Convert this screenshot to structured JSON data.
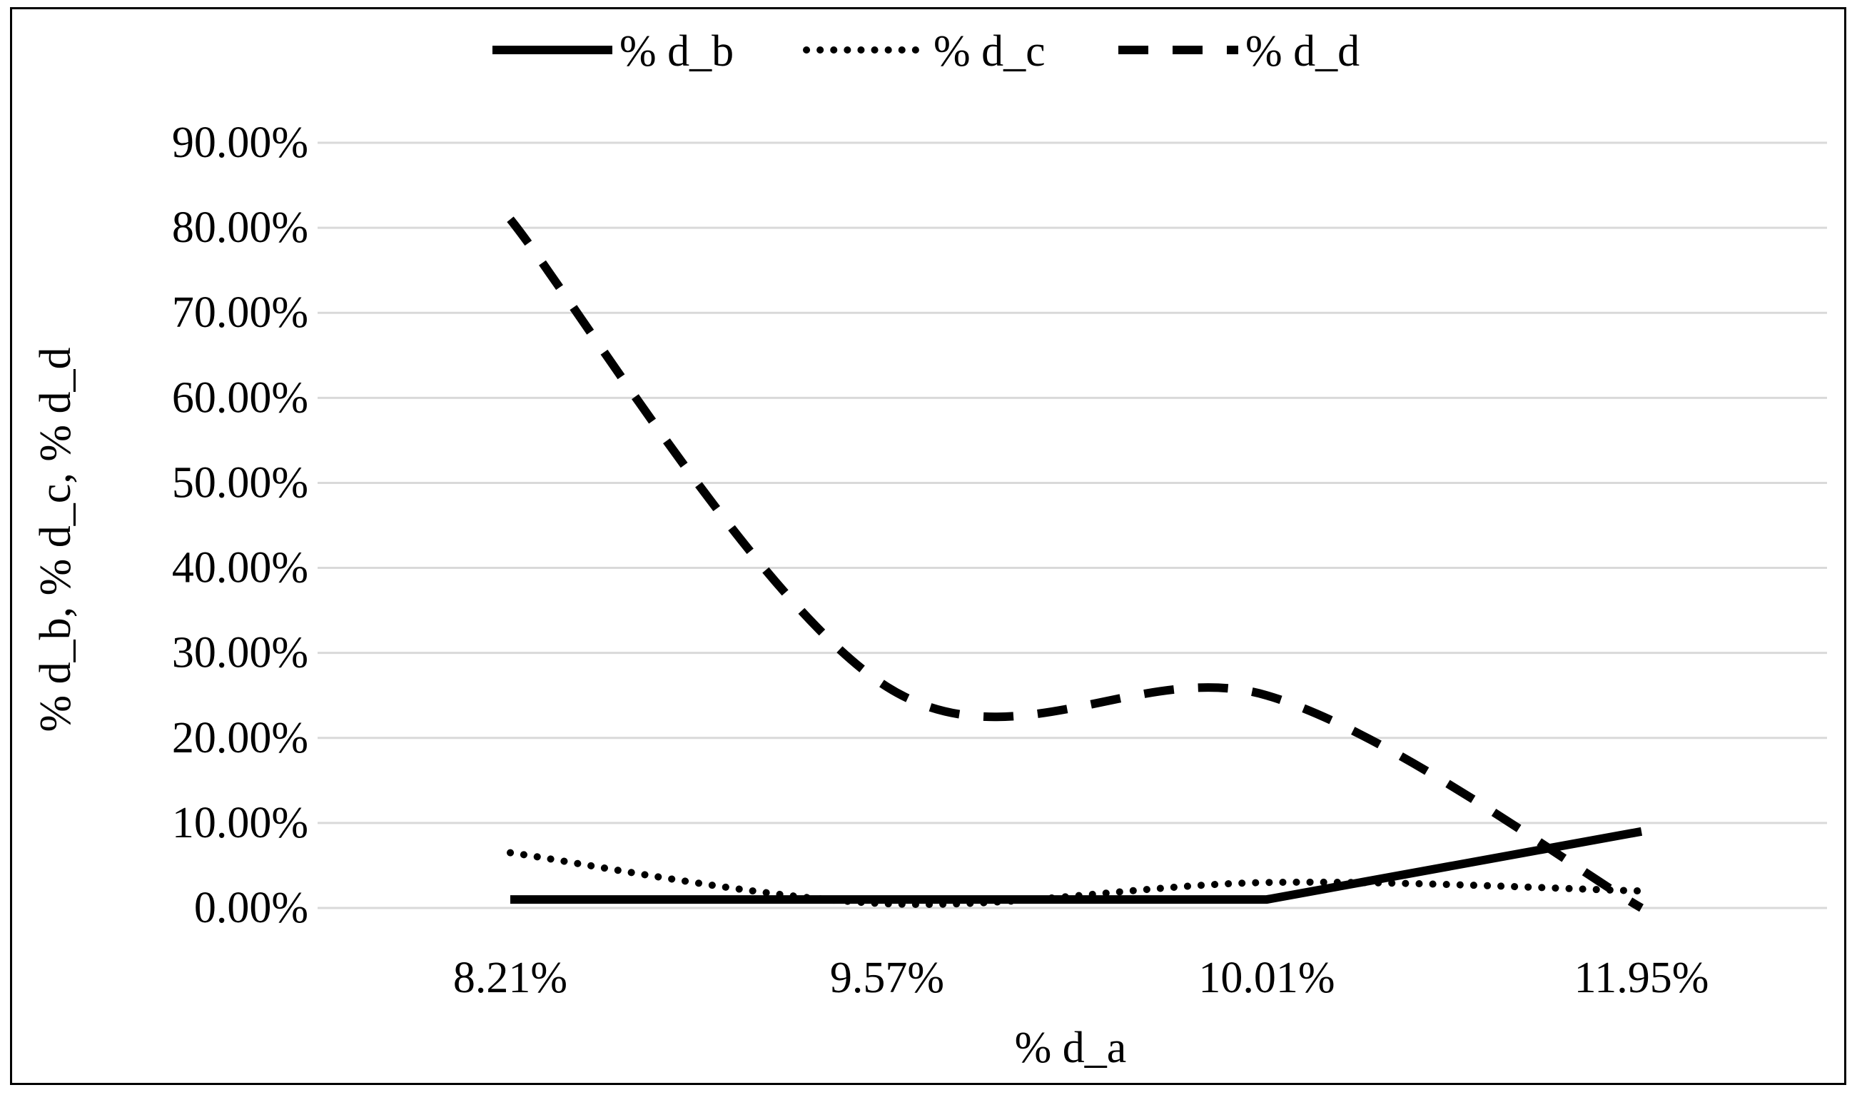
{
  "chart_data": {
    "type": "line",
    "title": "",
    "xlabel": "% d_a",
    "ylabel": "% d_b, % d_c, % d_d",
    "categories": [
      "8.21%",
      "9.57%",
      "10.01%",
      "11.95%"
    ],
    "y_ticks": [
      "0.00%",
      "10.00%",
      "20.00%",
      "30.00%",
      "40.00%",
      "50.00%",
      "60.00%",
      "70.00%",
      "80.00%",
      "90.00%"
    ],
    "ylim": [
      0,
      90
    ],
    "grid": true,
    "smooth": true,
    "legend_position": "top-center",
    "series": [
      {
        "name": "% d_b",
        "values": [
          1,
          1,
          1,
          9
        ],
        "line_style": "solid",
        "color": "#000000"
      },
      {
        "name": "% d_c",
        "values": [
          6.5,
          0.5,
          3,
          2
        ],
        "line_style": "dotted",
        "color": "#000000"
      },
      {
        "name": "% d_d",
        "values": [
          81,
          26,
          25,
          0
        ],
        "line_style": "dashed",
        "color": "#000000"
      }
    ]
  }
}
